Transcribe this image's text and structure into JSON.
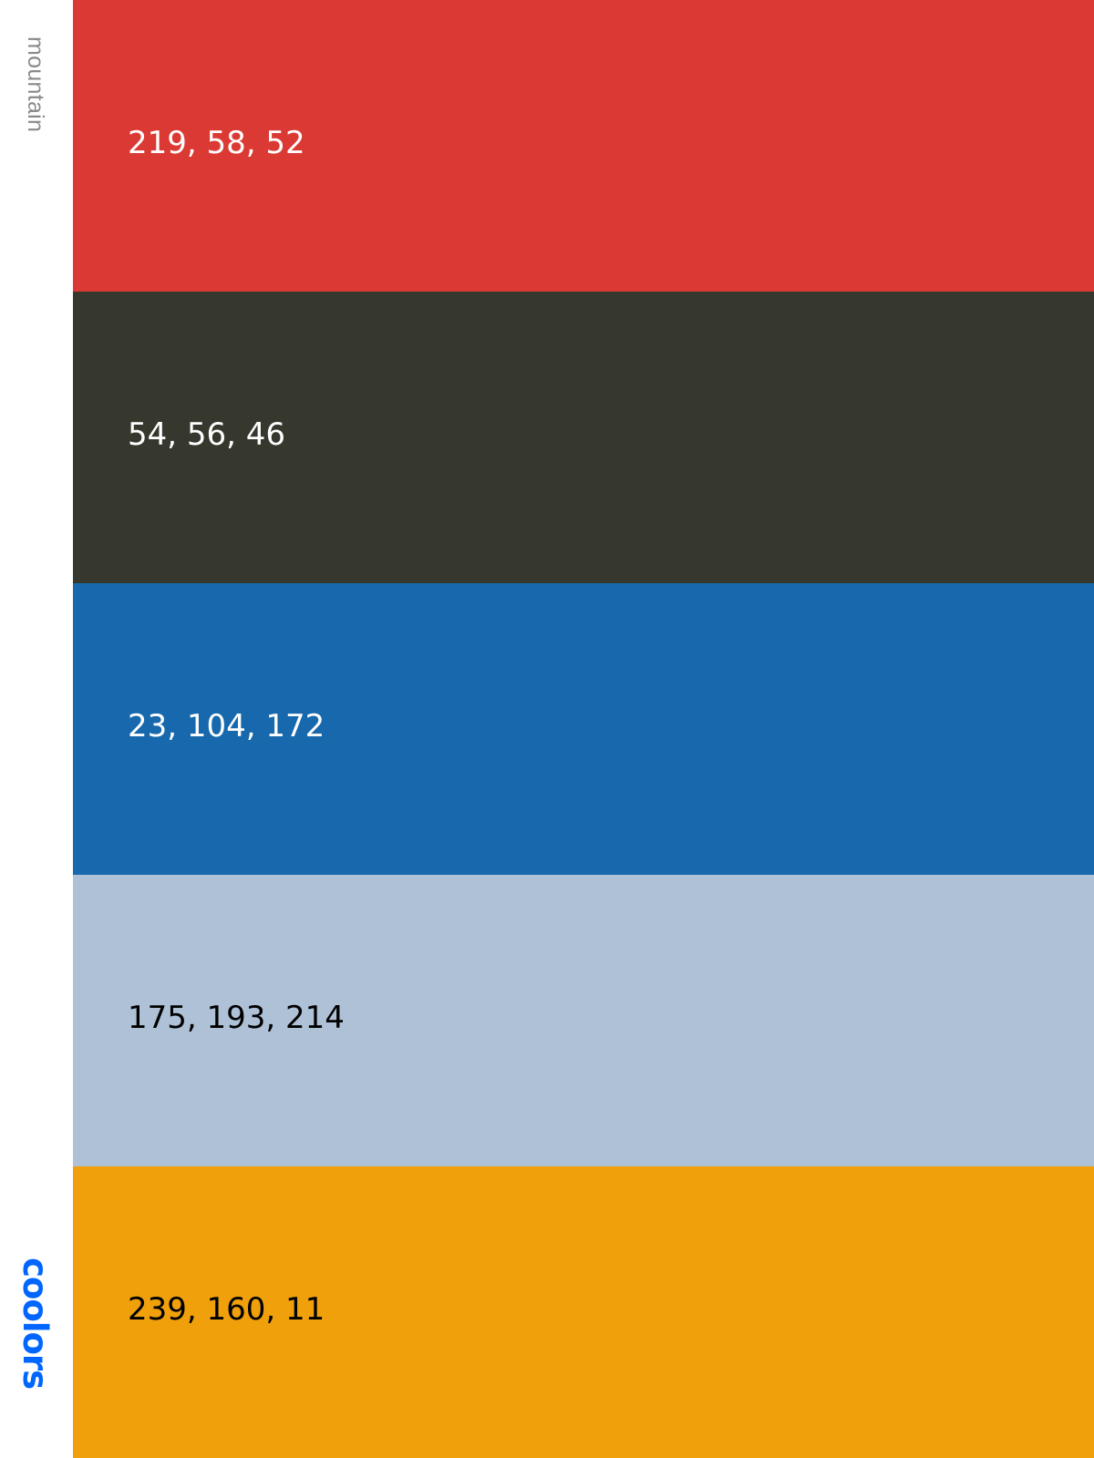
{
  "sidebar": {
    "palette_name": "mountain",
    "brand": "coolors",
    "brand_color": "#0066ff"
  },
  "swatches": [
    {
      "rgb_label": "219, 58, 52",
      "color": "#db3a34",
      "text_color": "#ffffff"
    },
    {
      "rgb_label": "54, 56, 46",
      "color": "#36382e",
      "text_color": "#ffffff"
    },
    {
      "rgb_label": "23, 104, 172",
      "color": "#1768ac",
      "text_color": "#ffffff"
    },
    {
      "rgb_label": "175, 193, 214",
      "color": "#afc1d6",
      "text_color": "#000000"
    },
    {
      "rgb_label": "239, 160, 11",
      "color": "#efa00b",
      "text_color": "#000000"
    }
  ]
}
